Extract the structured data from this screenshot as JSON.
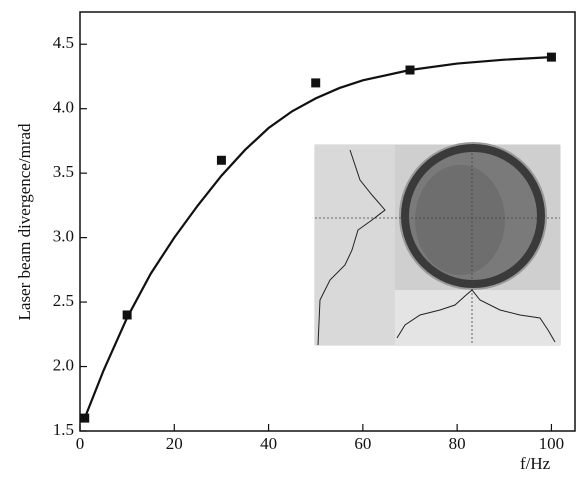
{
  "chart_data": {
    "type": "scatter",
    "xlabel": "f/Hz",
    "ylabel": "Laser beam divergence/mrad",
    "x": [
      1,
      10,
      30,
      50,
      70,
      100
    ],
    "values": [
      1.6,
      2.4,
      3.6,
      4.2,
      4.3,
      4.4
    ],
    "color": "#111111",
    "fit": {
      "x": [
        1,
        5,
        10,
        15,
        20,
        25,
        30,
        35,
        40,
        45,
        50,
        55,
        60,
        70,
        80,
        90,
        100
      ],
      "values": [
        1.6,
        1.97,
        2.38,
        2.72,
        3.0,
        3.25,
        3.48,
        3.68,
        3.85,
        3.98,
        4.08,
        4.16,
        4.22,
        4.3,
        4.35,
        4.38,
        4.4
      ]
    },
    "xlim": [
      0,
      105
    ],
    "ylim": [
      1.5,
      4.75
    ],
    "xticks": [
      0,
      20,
      40,
      60,
      80,
      100
    ],
    "yticks": [
      1.5,
      {
        "value": 2,
        "label": "2.0"
      },
      2.5,
      {
        "value": 3,
        "label": "3.0"
      },
      3.5,
      {
        "value": 4,
        "label": "4.0"
      },
      4.5
    ]
  }
}
